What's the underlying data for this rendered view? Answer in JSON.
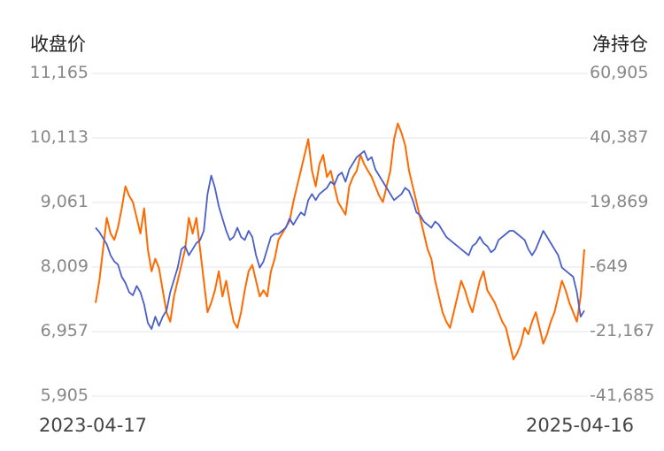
{
  "chart_data": {
    "type": "line",
    "left_axis_title": "收盘价",
    "right_axis_title": "净持仓",
    "x_start_label": "2023-04-17",
    "x_end_label": "2025-04-16",
    "left_ticks": [
      "11,165",
      "10,113",
      "9,061",
      "8,009",
      "6,957",
      "5,905"
    ],
    "right_ticks": [
      "60,905",
      "40,387",
      "19,869",
      "-649",
      "-21,167",
      "-41,685"
    ],
    "left_ylim": [
      5905,
      11165
    ],
    "right_ylim": [
      -41685,
      60905
    ],
    "grid": true,
    "series": [
      {
        "axis": "left",
        "color": "#4a5fc8",
        "values": [
          8650,
          8580,
          8480,
          8380,
          8200,
          8100,
          8050,
          7850,
          7750,
          7600,
          7550,
          7700,
          7600,
          7400,
          7100,
          7000,
          7200,
          7050,
          7200,
          7300,
          7600,
          7800,
          8000,
          8300,
          8350,
          8200,
          8300,
          8400,
          8450,
          8600,
          9200,
          9500,
          9300,
          9000,
          8800,
          8600,
          8450,
          8500,
          8650,
          8500,
          8450,
          8600,
          8500,
          8200,
          8000,
          8100,
          8300,
          8500,
          8550,
          8550,
          8600,
          8650,
          8800,
          8700,
          8800,
          8900,
          8850,
          9100,
          9200,
          9100,
          9200,
          9250,
          9300,
          9400,
          9350,
          9500,
          9550,
          9400,
          9600,
          9700,
          9800,
          9850,
          9900,
          9750,
          9800,
          9600,
          9500,
          9400,
          9300,
          9200,
          9100,
          9150,
          9200,
          9300,
          9250,
          9100,
          8900,
          8850,
          8750,
          8700,
          8650,
          8750,
          8700,
          8600,
          8500,
          8450,
          8400,
          8350,
          8300,
          8250,
          8200,
          8350,
          8400,
          8500,
          8400,
          8350,
          8250,
          8300,
          8450,
          8500,
          8550,
          8600,
          8600,
          8550,
          8500,
          8450,
          8300,
          8200,
          8300,
          8450,
          8600,
          8500,
          8400,
          8300,
          8200,
          8000,
          7950,
          7900,
          7850,
          7600,
          7200,
          7300
        ]
      },
      {
        "axis": "right",
        "color": "#ff6a00",
        "values": [
          -12000,
          -5000,
          5000,
          15000,
          10000,
          8000,
          12000,
          18000,
          25000,
          22000,
          20000,
          15000,
          10000,
          18000,
          5000,
          -2000,
          2000,
          -1000,
          -8000,
          -15000,
          -18000,
          -10000,
          -5000,
          0,
          5000,
          15000,
          10000,
          15000,
          5000,
          -5000,
          -15000,
          -12000,
          -8000,
          -2000,
          -10000,
          -5000,
          -12000,
          -18000,
          -20000,
          -15000,
          -8000,
          -2000,
          0,
          -5000,
          -10000,
          -8000,
          -10000,
          -2000,
          2000,
          8000,
          10000,
          12000,
          14000,
          20000,
          25000,
          30000,
          35000,
          40000,
          30000,
          25000,
          32000,
          35000,
          28000,
          30000,
          25000,
          20000,
          18000,
          16000,
          25000,
          28000,
          30000,
          35000,
          32000,
          30000,
          28000,
          25000,
          22000,
          20000,
          25000,
          30000,
          40000,
          45000,
          42000,
          38000,
          30000,
          25000,
          20000,
          15000,
          10000,
          5000,
          2000,
          -5000,
          -10000,
          -15000,
          -18000,
          -20000,
          -15000,
          -10000,
          -5000,
          -8000,
          -12000,
          -15000,
          -10000,
          -5000,
          -2000,
          -8000,
          -10000,
          -12000,
          -15000,
          -18000,
          -20000,
          -25000,
          -30000,
          -28000,
          -25000,
          -20000,
          -22000,
          -18000,
          -15000,
          -20000,
          -25000,
          -22000,
          -18000,
          -15000,
          -10000,
          -5000,
          -8000,
          -12000,
          -15000,
          -18000,
          -10000,
          5000
        ]
      }
    ]
  }
}
